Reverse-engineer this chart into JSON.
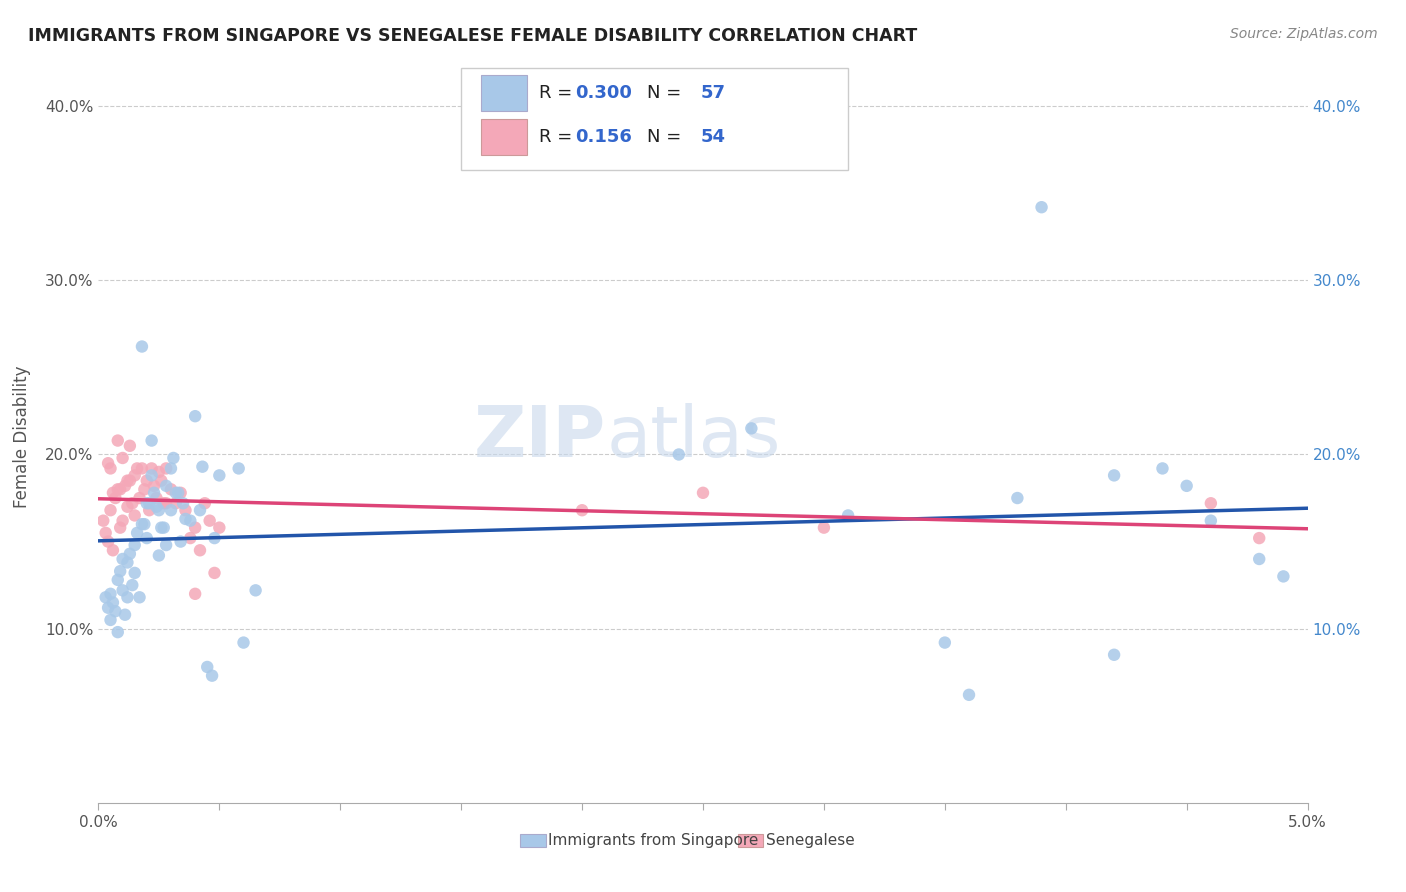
{
  "title": "IMMIGRANTS FROM SINGAPORE VS SENEGALESE FEMALE DISABILITY CORRELATION CHART",
  "source_text": "Source: ZipAtlas.com",
  "ylabel": "Female Disability",
  "xlim": [
    0.0,
    0.05
  ],
  "ylim": [
    0.0,
    0.42
  ],
  "y_ticks": [
    0.1,
    0.2,
    0.3,
    0.4
  ],
  "y_tick_labels": [
    "10.0%",
    "20.0%",
    "30.0%",
    "40.0%"
  ],
  "sg_color": "#a8c8e8",
  "sn_color": "#f4a8b8",
  "sg_line_color": "#2255aa",
  "sn_line_color": "#dd4477",
  "watermark_color": "#c8d8ec",
  "sg_scatter": [
    [
      0.0003,
      0.118
    ],
    [
      0.0004,
      0.112
    ],
    [
      0.0005,
      0.105
    ],
    [
      0.0005,
      0.12
    ],
    [
      0.0006,
      0.115
    ],
    [
      0.0007,
      0.11
    ],
    [
      0.0008,
      0.128
    ],
    [
      0.0008,
      0.098
    ],
    [
      0.0009,
      0.133
    ],
    [
      0.001,
      0.122
    ],
    [
      0.001,
      0.14
    ],
    [
      0.0011,
      0.108
    ],
    [
      0.0012,
      0.138
    ],
    [
      0.0012,
      0.118
    ],
    [
      0.0013,
      0.143
    ],
    [
      0.0014,
      0.125
    ],
    [
      0.0015,
      0.148
    ],
    [
      0.0015,
      0.132
    ],
    [
      0.0016,
      0.155
    ],
    [
      0.0017,
      0.118
    ],
    [
      0.0018,
      0.16
    ],
    [
      0.0018,
      0.262
    ],
    [
      0.0019,
      0.16
    ],
    [
      0.002,
      0.152
    ],
    [
      0.002,
      0.172
    ],
    [
      0.0021,
      0.172
    ],
    [
      0.0022,
      0.188
    ],
    [
      0.0022,
      0.208
    ],
    [
      0.0023,
      0.178
    ],
    [
      0.0024,
      0.17
    ],
    [
      0.0025,
      0.168
    ],
    [
      0.0025,
      0.142
    ],
    [
      0.0026,
      0.158
    ],
    [
      0.0027,
      0.158
    ],
    [
      0.0028,
      0.148
    ],
    [
      0.0028,
      0.182
    ],
    [
      0.003,
      0.192
    ],
    [
      0.003,
      0.168
    ],
    [
      0.0031,
      0.198
    ],
    [
      0.0032,
      0.178
    ],
    [
      0.0033,
      0.178
    ],
    [
      0.0034,
      0.15
    ],
    [
      0.0035,
      0.172
    ],
    [
      0.0036,
      0.163
    ],
    [
      0.0038,
      0.162
    ],
    [
      0.004,
      0.222
    ],
    [
      0.0042,
      0.168
    ],
    [
      0.0043,
      0.193
    ],
    [
      0.0045,
      0.078
    ],
    [
      0.0047,
      0.073
    ],
    [
      0.0048,
      0.152
    ],
    [
      0.005,
      0.188
    ],
    [
      0.0058,
      0.192
    ],
    [
      0.006,
      0.092
    ],
    [
      0.0065,
      0.122
    ],
    [
      0.024,
      0.2
    ],
    [
      0.039,
      0.342
    ],
    [
      0.042,
      0.188
    ],
    [
      0.045,
      0.182
    ],
    [
      0.048,
      0.14
    ],
    [
      0.049,
      0.13
    ],
    [
      0.042,
      0.085
    ],
    [
      0.027,
      0.215
    ],
    [
      0.031,
      0.165
    ],
    [
      0.035,
      0.092
    ],
    [
      0.036,
      0.062
    ],
    [
      0.038,
      0.175
    ],
    [
      0.044,
      0.192
    ],
    [
      0.046,
      0.162
    ]
  ],
  "sn_scatter": [
    [
      0.0002,
      0.162
    ],
    [
      0.0003,
      0.155
    ],
    [
      0.0004,
      0.15
    ],
    [
      0.0004,
      0.195
    ],
    [
      0.0005,
      0.168
    ],
    [
      0.0005,
      0.192
    ],
    [
      0.0006,
      0.145
    ],
    [
      0.0006,
      0.178
    ],
    [
      0.0007,
      0.175
    ],
    [
      0.0008,
      0.18
    ],
    [
      0.0008,
      0.208
    ],
    [
      0.0009,
      0.158
    ],
    [
      0.0009,
      0.18
    ],
    [
      0.001,
      0.162
    ],
    [
      0.001,
      0.198
    ],
    [
      0.0011,
      0.182
    ],
    [
      0.0012,
      0.17
    ],
    [
      0.0012,
      0.185
    ],
    [
      0.0013,
      0.185
    ],
    [
      0.0013,
      0.205
    ],
    [
      0.0014,
      0.172
    ],
    [
      0.0015,
      0.188
    ],
    [
      0.0015,
      0.165
    ],
    [
      0.0016,
      0.192
    ],
    [
      0.0017,
      0.175
    ],
    [
      0.0018,
      0.192
    ],
    [
      0.0019,
      0.18
    ],
    [
      0.002,
      0.185
    ],
    [
      0.0021,
      0.168
    ],
    [
      0.0022,
      0.192
    ],
    [
      0.0023,
      0.182
    ],
    [
      0.0024,
      0.175
    ],
    [
      0.0025,
      0.19
    ],
    [
      0.0026,
      0.185
    ],
    [
      0.0027,
      0.172
    ],
    [
      0.0028,
      0.172
    ],
    [
      0.0028,
      0.192
    ],
    [
      0.003,
      0.18
    ],
    [
      0.0032,
      0.172
    ],
    [
      0.0034,
      0.178
    ],
    [
      0.0036,
      0.168
    ],
    [
      0.0038,
      0.152
    ],
    [
      0.004,
      0.12
    ],
    [
      0.004,
      0.158
    ],
    [
      0.0042,
      0.145
    ],
    [
      0.0044,
      0.172
    ],
    [
      0.0046,
      0.162
    ],
    [
      0.0048,
      0.132
    ],
    [
      0.005,
      0.158
    ],
    [
      0.02,
      0.168
    ],
    [
      0.025,
      0.178
    ],
    [
      0.03,
      0.158
    ],
    [
      0.046,
      0.172
    ],
    [
      0.048,
      0.152
    ]
  ]
}
